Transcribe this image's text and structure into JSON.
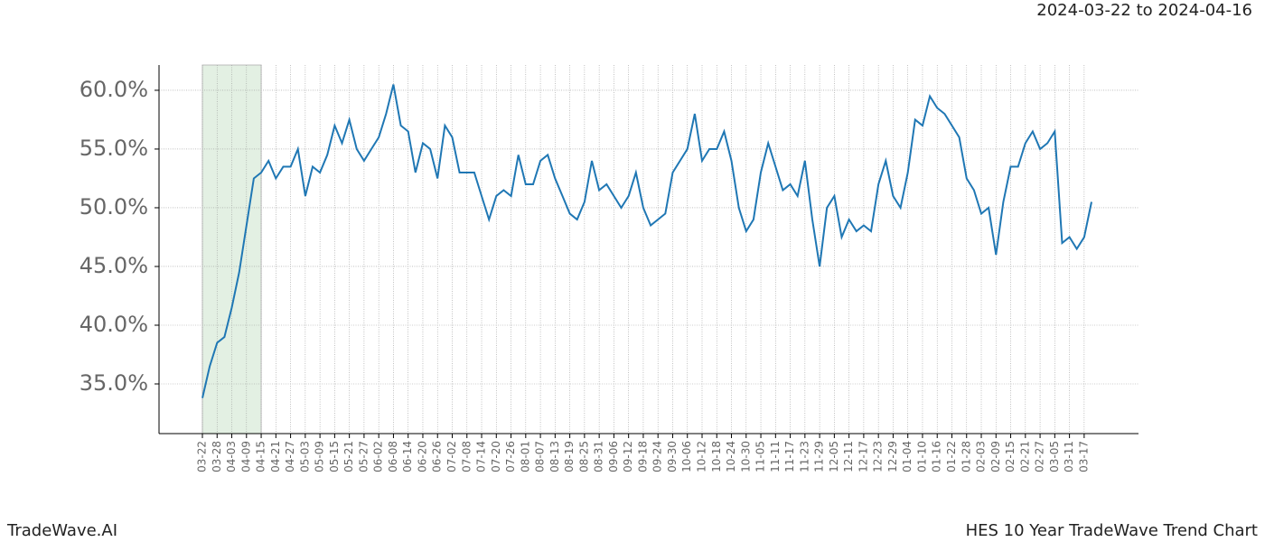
{
  "header": {
    "date_range": "2024-03-22 to 2024-04-16"
  },
  "footer": {
    "brand": "TradeWave.AI",
    "chart_name": "HES 10 Year TradeWave Trend Chart"
  },
  "chart_data": {
    "type": "line",
    "color": "#1f77b4",
    "grid": true,
    "shade": {
      "from": "03-22",
      "to": "04-15",
      "color": "#e3f0e3"
    },
    "x": [
      "03-22",
      null,
      "03-28",
      null,
      "04-03",
      null,
      "04-09",
      null,
      "04-15",
      null,
      "04-21",
      null,
      "04-27",
      null,
      "05-03",
      null,
      "05-09",
      null,
      "05-15",
      null,
      "05-21",
      null,
      "05-27",
      null,
      "06-02",
      null,
      "06-08",
      null,
      "06-14",
      null,
      "06-20",
      null,
      "06-26",
      null,
      "07-02",
      null,
      "07-08",
      null,
      "07-14",
      null,
      "07-20",
      null,
      "07-26",
      null,
      "08-01",
      null,
      "08-07",
      null,
      "08-13",
      null,
      "08-19",
      null,
      "08-25",
      null,
      "08-31",
      null,
      "09-06",
      null,
      "09-12",
      null,
      "09-18",
      null,
      "09-24",
      null,
      "09-30",
      null,
      "10-06",
      null,
      "10-12",
      null,
      "10-18",
      null,
      "10-24",
      null,
      "10-30",
      null,
      "11-05",
      null,
      "11-11",
      null,
      "11-17",
      null,
      "11-23",
      null,
      "11-29",
      null,
      "12-05",
      null,
      "12-11",
      null,
      "12-17",
      null,
      "12-23",
      null,
      "12-29",
      null,
      "01-04",
      null,
      "01-10",
      null,
      "01-16",
      null,
      "01-22",
      null,
      "01-28",
      null,
      "02-03",
      null,
      "02-09",
      null,
      "02-15",
      null,
      "02-21",
      null,
      "02-27",
      null,
      "03-05",
      null,
      "03-11",
      null,
      "03-17",
      null
    ],
    "values": [
      33.8,
      36.5,
      38.5,
      39,
      41.5,
      44.5,
      48.5,
      52.5,
      53,
      54,
      52.5,
      53.5,
      53.5,
      55,
      51,
      53.5,
      53,
      54.5,
      57,
      55.5,
      57.5,
      55,
      54,
      55,
      56,
      58,
      60.5,
      57,
      56.5,
      53,
      55.5,
      55,
      52.5,
      57,
      56,
      53,
      53,
      53,
      51,
      49,
      51,
      51.5,
      51,
      54.5,
      52,
      52,
      54,
      54.5,
      52.5,
      51,
      49.5,
      49,
      50.5,
      54,
      51.5,
      52,
      51,
      50,
      51,
      53,
      50,
      48.5,
      49,
      49.5,
      53,
      54,
      55,
      58,
      54,
      55,
      55,
      56.5,
      54,
      50,
      48,
      49,
      53,
      55.5,
      53.5,
      51.5,
      52,
      51,
      54,
      49,
      45,
      50,
      51,
      47.5,
      49,
      48,
      48.5,
      48,
      52,
      54,
      51,
      50,
      53,
      57.5,
      57,
      59.5,
      58.5,
      58,
      57,
      56,
      52.5,
      51.5,
      49.5,
      50,
      46,
      50.5,
      53.5,
      53.5,
      55.5,
      56.5,
      55,
      55.5,
      56.5,
      47,
      47.5,
      46.5,
      47.5,
      50.5
    ],
    "ylim": [
      30.77,
      62.15
    ],
    "yticks": [
      {
        "value": 35,
        "label": "35.0%"
      },
      {
        "value": 40,
        "label": "40.0%"
      },
      {
        "value": 45,
        "label": "45.0%"
      },
      {
        "value": 50,
        "label": "50.0%"
      },
      {
        "value": 55,
        "label": "55.0%"
      },
      {
        "value": 60,
        "label": "60.0%"
      }
    ]
  }
}
